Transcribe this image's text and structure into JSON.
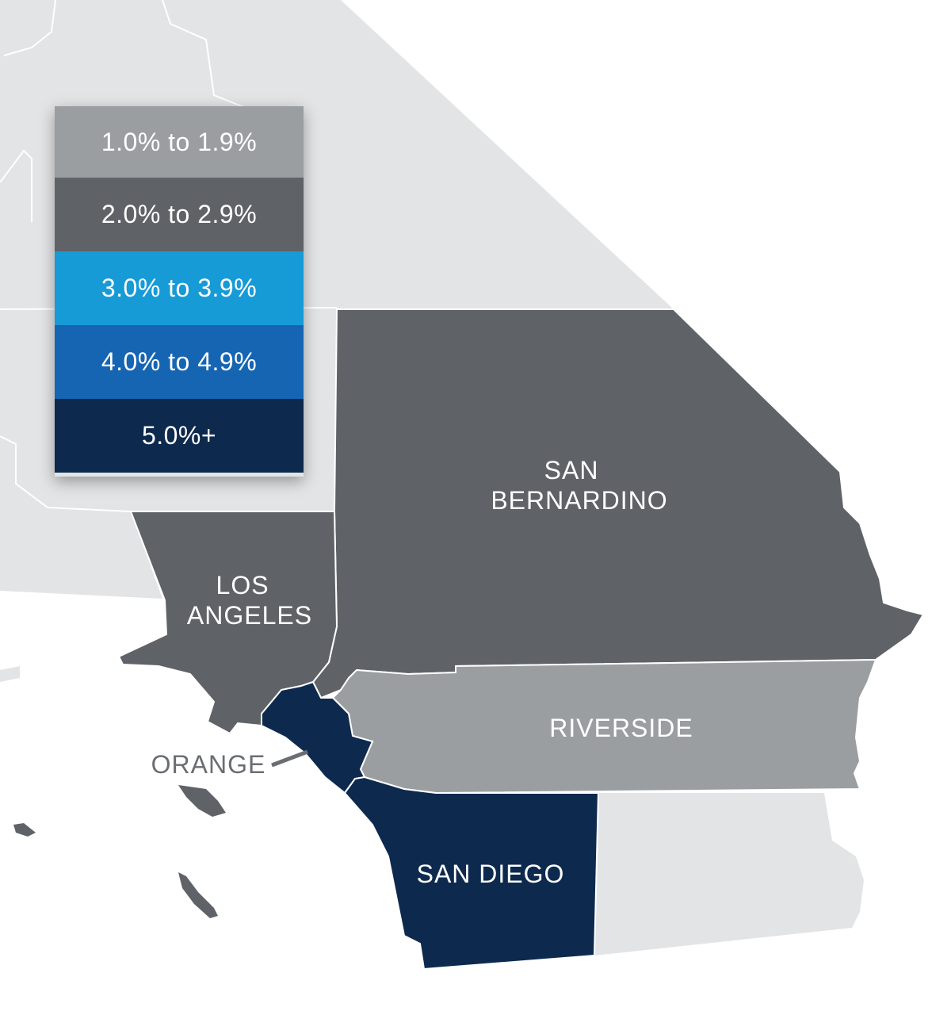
{
  "colors": {
    "background_land": "#e3e4e5",
    "water": "#ffffff",
    "border_line": "#ffffff",
    "range_1": "#9b9ea1",
    "range_2": "#5f6267",
    "range_3": "#169bd7",
    "range_4": "#1665b3",
    "range_5": "#0d2a4e",
    "island": "#5f6267",
    "pointer_line": "#6a6d72"
  },
  "legend": {
    "items": [
      {
        "label": "1.0% to 1.9%",
        "color": "#9b9ea1"
      },
      {
        "label": "2.0% to 2.9%",
        "color": "#5f6267"
      },
      {
        "label": "3.0% to 3.9%",
        "color": "#169bd7"
      },
      {
        "label": "4.0% to 4.9%",
        "color": "#1665b3"
      },
      {
        "label": "5.0%+",
        "color": "#0d2a4e"
      }
    ]
  },
  "counties": {
    "san_bernardino": {
      "line1": "SAN",
      "line2": "BERNARDINO",
      "range": "2.0% to 2.9%"
    },
    "los_angeles": {
      "line1": "LOS",
      "line2": "ANGELES",
      "range": "2.0% to 2.9%"
    },
    "riverside": {
      "label": "RIVERSIDE",
      "range": "1.0% to 1.9%"
    },
    "orange": {
      "label": "ORANGE",
      "range": "5.0%+"
    },
    "san_diego": {
      "label": "SAN DIEGO",
      "range": "5.0%+"
    }
  }
}
